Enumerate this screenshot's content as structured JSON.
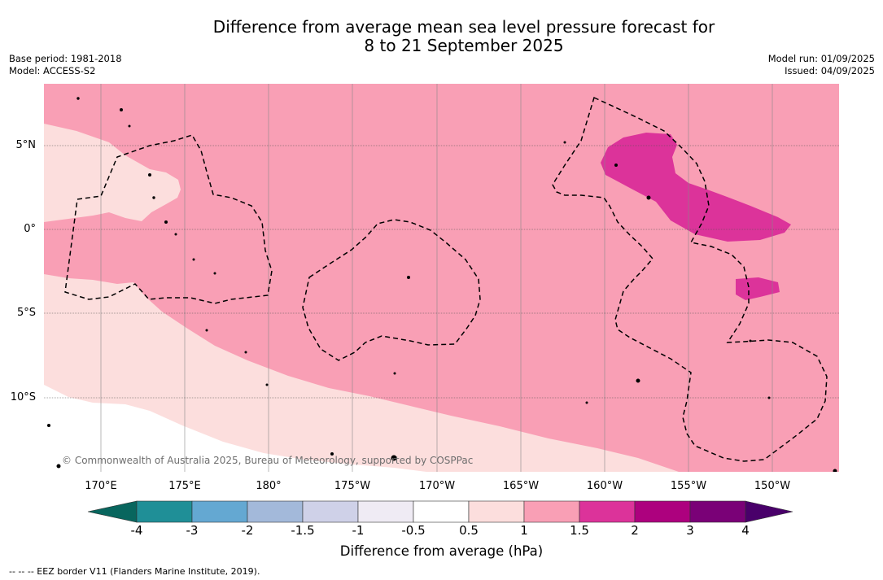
{
  "title": {
    "line1": "Difference from average mean sea level pressure forecast for",
    "line2": "8 to 21 September 2025"
  },
  "meta_left": {
    "base_period": "Base period: 1981-2018",
    "model": "Model: ACCESS-S2"
  },
  "meta_right": {
    "model_run": "Model run: 01/09/2025",
    "issued": "Issued: 04/09/2025"
  },
  "map": {
    "latitude_labels": [
      "5°N",
      "0°",
      "5°S",
      "10°S"
    ],
    "longitude_labels": [
      "170°E",
      "175°E",
      "180°",
      "175°W",
      "170°W",
      "165°W",
      "160°W",
      "155°W",
      "150°W"
    ],
    "copyright": "© Commonwealth of Australia 2025, Bureau of Meteorology, supported by COSPPac",
    "fill_colors": {
      "ocean_default": "#f99fb5",
      "band_0_5_to_1": "#fcdedd",
      "band_1_5_to_2": "#dc339a",
      "land": "#000000"
    }
  },
  "colorbar": {
    "ticks": [
      "-4",
      "-3",
      "-2",
      "-1.5",
      "-1",
      "-0.5",
      "0.5",
      "1",
      "1.5",
      "2",
      "3",
      "4"
    ],
    "colors": [
      "#08665e",
      "#1f8f97",
      "#64a8d2",
      "#a3b9da",
      "#cfd1e8",
      "#efebf4",
      "#ffffff",
      "#fcdedd",
      "#f99fb5",
      "#dc339a",
      "#ad017e",
      "#7a0177",
      "#49006a"
    ],
    "label": "Difference from average (hPa)"
  },
  "footnote": "--  --  -- EEZ border V11 (Flanders Marine Institute, 2019)."
}
